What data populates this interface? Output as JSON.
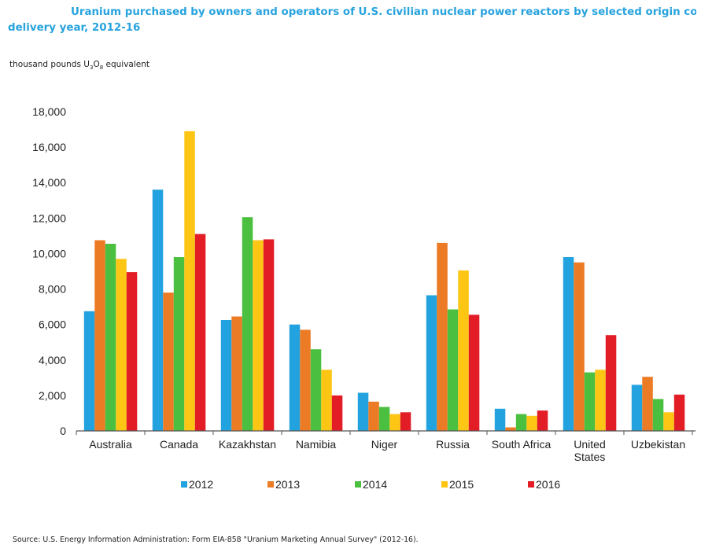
{
  "chart_data": {
    "type": "bar",
    "title_line1": "Uranium purchased by owners and operators of U.S. civilian nuclear power reactors by selected origin country and",
    "title_line2": "delivery year, 2012-16",
    "units_label": "thousand pounds U",
    "units_sub1": "3",
    "units_mid": "O",
    "units_sub2": "8",
    "units_tail": " equivalent",
    "source": "Source: U.S. Energy Information Administration: Form EIA-858 \"Uranium Marketing Annual Survey\"  (2012-16).",
    "ylim": [
      0,
      18000
    ],
    "yticks": [
      "0",
      "2,000",
      "4,000",
      "6,000",
      "8,000",
      "10,000",
      "12,000",
      "14,000",
      "16,000",
      "18,000"
    ],
    "categories": [
      [
        "Australia"
      ],
      [
        "Canada"
      ],
      [
        "Kazakhstan"
      ],
      [
        "Namibia"
      ],
      [
        "Niger"
      ],
      [
        "Russia"
      ],
      [
        "South Africa"
      ],
      [
        "United",
        "States"
      ],
      [
        "Uzbekistan"
      ]
    ],
    "legend_position": "bottom",
    "series": [
      {
        "name": "2012",
        "color": "#22a2de",
        "values": [
          6750,
          13600,
          6250,
          6000,
          2150,
          7650,
          1250,
          9800,
          2600
        ]
      },
      {
        "name": "2013",
        "color": "#ec7b25",
        "values": [
          10750,
          7800,
          6450,
          5700,
          1650,
          10600,
          200,
          9500,
          3050
        ]
      },
      {
        "name": "2014",
        "color": "#4bbf3f",
        "values": [
          10550,
          9800,
          12050,
          4600,
          1350,
          6850,
          950,
          3300,
          1800
        ]
      },
      {
        "name": "2015",
        "color": "#fdc615",
        "values": [
          9700,
          16900,
          10750,
          3450,
          950,
          9050,
          850,
          3450,
          1050
        ]
      },
      {
        "name": "2016",
        "color": "#e21d26",
        "values": [
          8950,
          11100,
          10800,
          2000,
          1050,
          6550,
          1150,
          5400,
          2050
        ]
      }
    ]
  }
}
